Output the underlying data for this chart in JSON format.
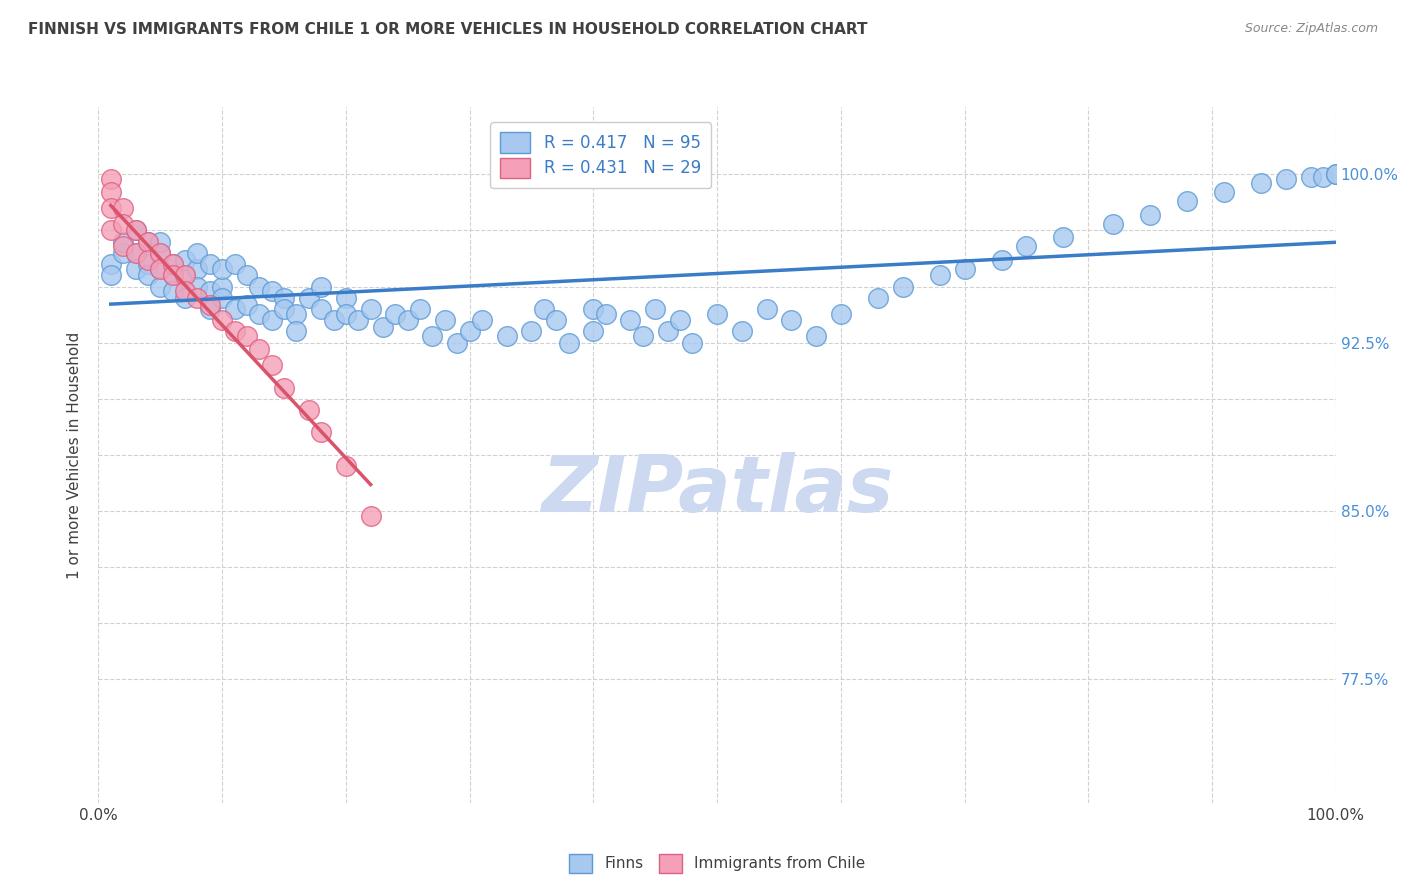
{
  "title": "FINNISH VS IMMIGRANTS FROM CHILE 1 OR MORE VEHICLES IN HOUSEHOLD CORRELATION CHART",
  "source": "Source: ZipAtlas.com",
  "ylabel": "1 or more Vehicles in Household",
  "xlim": [
    0.0,
    1.0
  ],
  "ylim": [
    0.72,
    1.03
  ],
  "finn_R": 0.417,
  "finn_N": 95,
  "chile_R": 0.431,
  "chile_N": 29,
  "finn_color": "#a8c8f0",
  "chile_color": "#f4a0b8",
  "finn_edge_color": "#5b9bd5",
  "chile_edge_color": "#e06080",
  "finn_line_color": "#3a7cc7",
  "chile_line_color": "#d9536a",
  "watermark": "ZIPatlas",
  "watermark_color": "#ccd9f0",
  "background_color": "#ffffff",
  "title_color": "#404040",
  "source_color": "#888888",
  "ylabel_color": "#404040",
  "right_tick_color": "#4a90d9",
  "grid_color": "#cccccc",
  "finn_x": [
    0.01,
    0.01,
    0.02,
    0.02,
    0.03,
    0.03,
    0.03,
    0.04,
    0.04,
    0.04,
    0.05,
    0.05,
    0.05,
    0.05,
    0.06,
    0.06,
    0.06,
    0.07,
    0.07,
    0.07,
    0.08,
    0.08,
    0.08,
    0.09,
    0.09,
    0.09,
    0.1,
    0.1,
    0.1,
    0.11,
    0.11,
    0.12,
    0.12,
    0.13,
    0.13,
    0.14,
    0.14,
    0.15,
    0.15,
    0.16,
    0.16,
    0.17,
    0.18,
    0.18,
    0.19,
    0.2,
    0.2,
    0.21,
    0.22,
    0.23,
    0.24,
    0.25,
    0.26,
    0.27,
    0.28,
    0.29,
    0.3,
    0.31,
    0.33,
    0.35,
    0.36,
    0.37,
    0.38,
    0.4,
    0.4,
    0.41,
    0.43,
    0.44,
    0.45,
    0.46,
    0.47,
    0.48,
    0.5,
    0.52,
    0.54,
    0.56,
    0.58,
    0.6,
    0.63,
    0.65,
    0.68,
    0.7,
    0.73,
    0.75,
    0.78,
    0.82,
    0.85,
    0.88,
    0.91,
    0.94,
    0.96,
    0.98,
    0.99,
    1.0,
    1.0
  ],
  "finn_y": [
    0.96,
    0.955,
    0.965,
    0.97,
    0.975,
    0.965,
    0.958,
    0.97,
    0.96,
    0.955,
    0.965,
    0.958,
    0.95,
    0.97,
    0.955,
    0.948,
    0.96,
    0.955,
    0.962,
    0.945,
    0.958,
    0.95,
    0.965,
    0.948,
    0.96,
    0.94,
    0.95,
    0.958,
    0.945,
    0.96,
    0.94,
    0.955,
    0.942,
    0.95,
    0.938,
    0.948,
    0.935,
    0.945,
    0.94,
    0.938,
    0.93,
    0.945,
    0.94,
    0.95,
    0.935,
    0.945,
    0.938,
    0.935,
    0.94,
    0.932,
    0.938,
    0.935,
    0.94,
    0.928,
    0.935,
    0.925,
    0.93,
    0.935,
    0.928,
    0.93,
    0.94,
    0.935,
    0.925,
    0.94,
    0.93,
    0.938,
    0.935,
    0.928,
    0.94,
    0.93,
    0.935,
    0.925,
    0.938,
    0.93,
    0.94,
    0.935,
    0.928,
    0.938,
    0.945,
    0.95,
    0.955,
    0.958,
    0.962,
    0.968,
    0.972,
    0.978,
    0.982,
    0.988,
    0.992,
    0.996,
    0.998,
    0.999,
    0.999,
    1.0,
    1.0
  ],
  "chile_x": [
    0.01,
    0.01,
    0.01,
    0.01,
    0.02,
    0.02,
    0.02,
    0.03,
    0.03,
    0.04,
    0.04,
    0.05,
    0.05,
    0.06,
    0.06,
    0.07,
    0.07,
    0.08,
    0.09,
    0.1,
    0.11,
    0.12,
    0.13,
    0.14,
    0.15,
    0.17,
    0.18,
    0.2,
    0.22
  ],
  "chile_y": [
    0.998,
    0.992,
    0.985,
    0.975,
    0.985,
    0.978,
    0.968,
    0.975,
    0.965,
    0.97,
    0.962,
    0.965,
    0.958,
    0.96,
    0.955,
    0.955,
    0.948,
    0.945,
    0.942,
    0.935,
    0.93,
    0.928,
    0.922,
    0.915,
    0.905,
    0.895,
    0.885,
    0.87,
    0.848
  ]
}
